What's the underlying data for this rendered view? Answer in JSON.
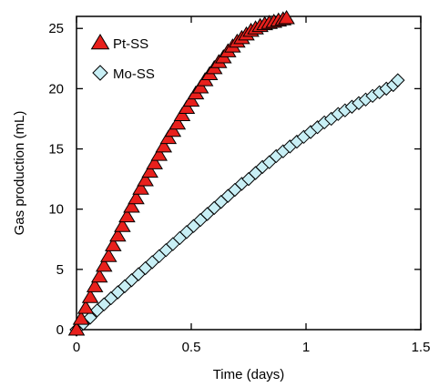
{
  "chart_data": {
    "type": "scatter",
    "title": "",
    "xlabel": "Time (days)",
    "ylabel": "Gas production (mL)",
    "xlim": [
      0,
      1.5
    ],
    "ylim": [
      0,
      26
    ],
    "x_ticks": [
      0,
      0.5,
      1,
      1.5
    ],
    "x_tick_labels": [
      "0",
      "0.5",
      "1",
      "1.5"
    ],
    "y_ticks": [
      0,
      5,
      10,
      15,
      20,
      25
    ],
    "y_tick_labels": [
      "0",
      "5",
      "10",
      "15",
      "20",
      "25"
    ],
    "grid": false,
    "legend_position": "top-left",
    "series": [
      {
        "name": "Pt-SS",
        "marker": "triangle",
        "color": "#e8201c",
        "x": [
          0.0,
          0.02,
          0.04,
          0.06,
          0.08,
          0.1,
          0.12,
          0.14,
          0.16,
          0.18,
          0.2,
          0.22,
          0.24,
          0.26,
          0.28,
          0.3,
          0.32,
          0.34,
          0.36,
          0.38,
          0.4,
          0.42,
          0.44,
          0.46,
          0.48,
          0.5,
          0.52,
          0.54,
          0.56,
          0.58,
          0.6,
          0.62,
          0.64,
          0.66,
          0.68,
          0.7,
          0.72,
          0.74,
          0.76,
          0.78,
          0.8,
          0.82,
          0.84,
          0.86,
          0.88,
          0.9,
          0.915
        ],
        "y": [
          0.0,
          0.9,
          1.8,
          2.7,
          3.6,
          4.4,
          5.3,
          6.1,
          7.0,
          7.8,
          8.6,
          9.4,
          10.2,
          10.9,
          11.7,
          12.4,
          13.1,
          13.8,
          14.5,
          15.2,
          15.9,
          16.5,
          17.1,
          17.8,
          18.4,
          19.0,
          19.6,
          20.1,
          20.7,
          21.2,
          21.7,
          22.2,
          22.6,
          23.1,
          23.5,
          23.9,
          24.2,
          24.5,
          24.8,
          25.0,
          25.2,
          25.35,
          25.45,
          25.55,
          25.65,
          25.75,
          25.85
        ]
      },
      {
        "name": "Mo-SS",
        "marker": "diamond",
        "color": "#c8eff5",
        "x": [
          0.0,
          0.03,
          0.06,
          0.09,
          0.12,
          0.15,
          0.18,
          0.21,
          0.24,
          0.27,
          0.3,
          0.33,
          0.36,
          0.39,
          0.42,
          0.45,
          0.48,
          0.51,
          0.54,
          0.57,
          0.6,
          0.63,
          0.66,
          0.69,
          0.72,
          0.75,
          0.78,
          0.81,
          0.84,
          0.87,
          0.9,
          0.93,
          0.96,
          0.99,
          1.02,
          1.05,
          1.08,
          1.11,
          1.14,
          1.17,
          1.2,
          1.23,
          1.26,
          1.29,
          1.32,
          1.35,
          1.38,
          1.4
        ],
        "y": [
          0.0,
          0.5,
          1.0,
          1.6,
          2.1,
          2.6,
          3.1,
          3.6,
          4.1,
          4.6,
          5.1,
          5.6,
          6.1,
          6.6,
          7.1,
          7.6,
          8.1,
          8.6,
          9.1,
          9.6,
          10.1,
          10.6,
          11.1,
          11.6,
          12.1,
          12.5,
          13.0,
          13.5,
          13.9,
          14.4,
          14.8,
          15.2,
          15.6,
          16.0,
          16.4,
          16.8,
          17.2,
          17.5,
          17.9,
          18.2,
          18.5,
          18.8,
          19.1,
          19.4,
          19.7,
          20.0,
          20.3,
          20.7
        ]
      }
    ]
  }
}
